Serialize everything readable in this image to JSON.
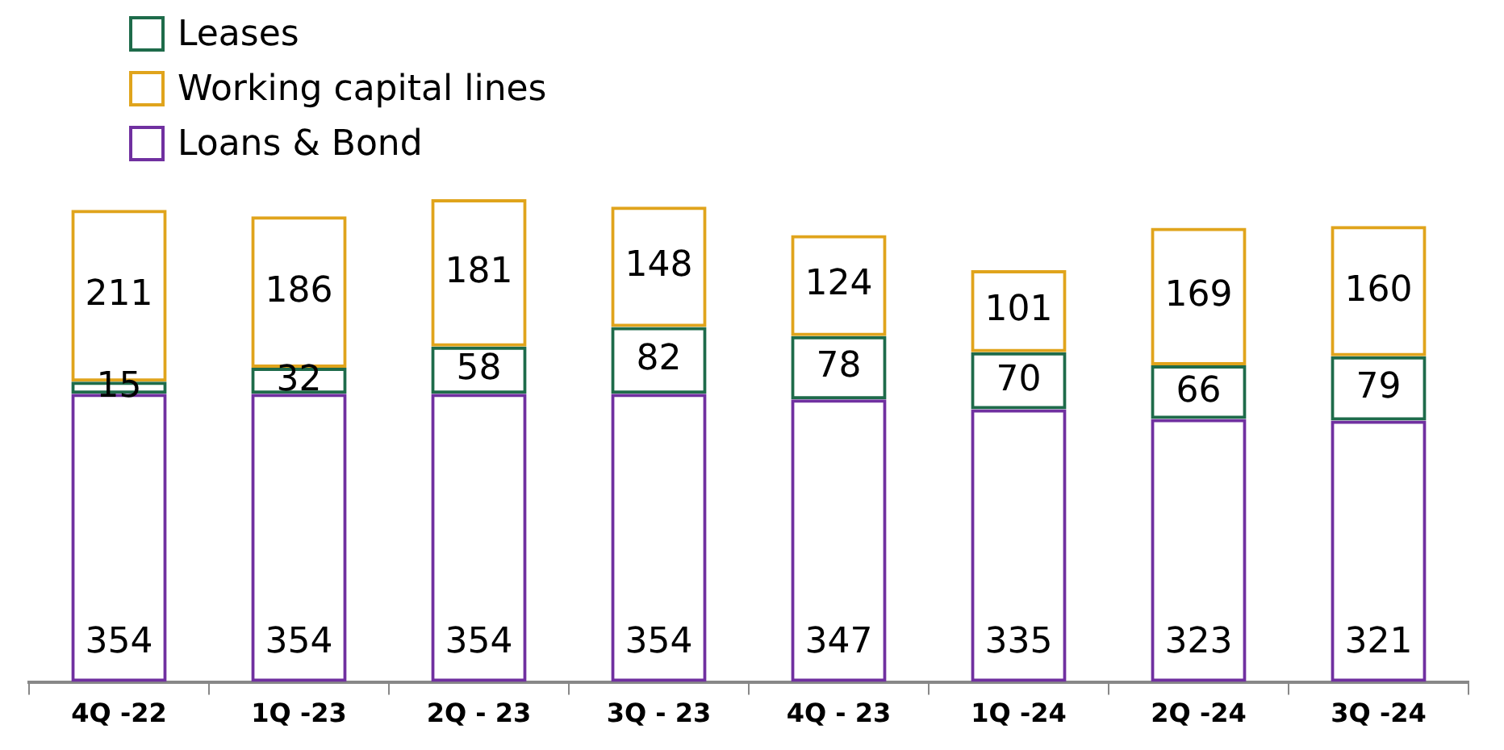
{
  "chart_data": {
    "type": "bar",
    "stacked": true,
    "categories": [
      "4Q -22",
      "1Q -23",
      "2Q - 23",
      "3Q - 23",
      "4Q - 23",
      "1Q -24",
      "2Q -24",
      "3Q -24"
    ],
    "series": [
      {
        "name": "Loans & Bond",
        "color": "#7030a0",
        "values": [
          354,
          354,
          354,
          354,
          347,
          335,
          323,
          321
        ]
      },
      {
        "name": "Leases",
        "color": "#1e6b4a",
        "values": [
          15,
          32,
          58,
          82,
          78,
          70,
          66,
          79
        ]
      },
      {
        "name": "Working capital lines",
        "color": "#e0a41c",
        "values": [
          211,
          186,
          181,
          148,
          124,
          101,
          169,
          160
        ]
      }
    ],
    "data_labels": true,
    "legend": "top left",
    "grid": false,
    "tick_labels": "x"
  }
}
